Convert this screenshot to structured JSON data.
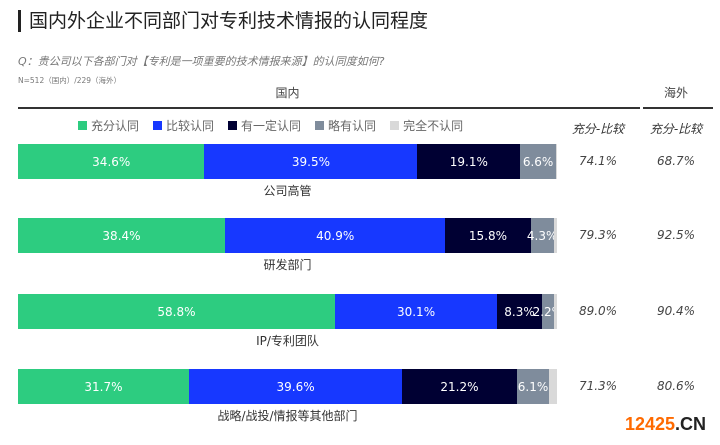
{
  "title": "国内外企业不同部门对专利技术情报的认同程度",
  "question": "Q：贵公司以下各部门对【专利是一项重要的技术情报来源】的认同度如何?",
  "sample": "N=512（国内）/229（海外）",
  "watermark": {
    "num": "12425",
    "dot": ".CN"
  },
  "chart_data": {
    "type": "bar",
    "stacked": true,
    "orientation": "horizontal",
    "title": "国内外企业不同部门对专利技术情报的认同程度",
    "group_domestic": "国内",
    "group_overseas": "海外",
    "col_header": "充分-比较",
    "legend": [
      "充分认同",
      "比较认同",
      "有一定认同",
      "略有认同",
      "完全不认同"
    ],
    "colors": [
      "#2dcc80",
      "#1738ff",
      "#000033",
      "#7f8c9c",
      "#d9d9d9"
    ],
    "categories": [
      "公司高管",
      "研发部门",
      "IP/专利团队",
      "战略/战投/情报等其他部门"
    ],
    "series": [
      {
        "name": "充分认同",
        "values": [
          34.6,
          38.4,
          58.8,
          31.7
        ]
      },
      {
        "name": "比较认同",
        "values": [
          39.5,
          40.9,
          30.1,
          39.6
        ]
      },
      {
        "name": "有一定认同",
        "values": [
          19.1,
          15.8,
          8.3,
          21.2
        ]
      },
      {
        "name": "略有认同",
        "values": [
          6.6,
          4.3,
          2.2,
          6.1
        ]
      },
      {
        "name": "完全不认同",
        "values": [
          0.2,
          0.6,
          0.6,
          1.4
        ]
      }
    ],
    "domestic_top2": [
      "74.1%",
      "79.3%",
      "89.0%",
      "71.3%"
    ],
    "overseas_top2": [
      "68.7%",
      "92.5%",
      "90.4%",
      "80.6%"
    ]
  }
}
